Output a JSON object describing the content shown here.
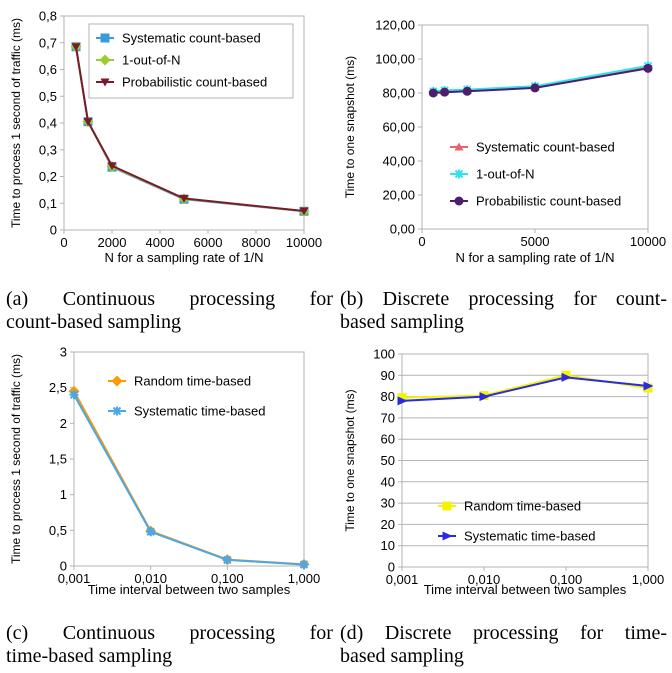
{
  "chart_data": [
    {
      "id": "a",
      "type": "line",
      "xlabel": "N for a sampling rate of 1/N",
      "ylabel": "Time to process 1 second of traffic (ms)",
      "xlim": [
        0,
        10000
      ],
      "ylim": [
        0,
        0.8
      ],
      "xscale": "linear",
      "xticks": [
        0,
        2000,
        4000,
        6000,
        8000,
        10000
      ],
      "xtick_labels": [
        "0",
        "2000",
        "4000",
        "6000",
        "8000",
        "10000"
      ],
      "yticks": [
        0,
        0.1,
        0.2,
        0.3,
        0.4,
        0.5,
        0.6,
        0.7,
        0.8
      ],
      "ytick_labels": [
        "0",
        "0,1",
        "0,2",
        "0,3",
        "0,4",
        "0,5",
        "0,6",
        "0,7",
        "0,8"
      ],
      "grid": false,
      "legend_position": "top-right",
      "series": [
        {
          "name": "Systematic count-based",
          "color": "#3a9ad9",
          "marker": "square",
          "x": [
            500,
            1000,
            2000,
            5000,
            10000
          ],
          "y": [
            0.685,
            0.405,
            0.235,
            0.115,
            0.07
          ]
        },
        {
          "name": "1-out-of-N",
          "color": "#9acd32",
          "marker": "diamond",
          "x": [
            500,
            1000,
            2000,
            5000,
            10000
          ],
          "y": [
            0.685,
            0.405,
            0.237,
            0.117,
            0.07
          ]
        },
        {
          "name": "Probabilistic count-based",
          "color": "#7a1a2e",
          "marker": "triangle-down",
          "x": [
            500,
            1000,
            2000,
            5000,
            10000
          ],
          "y": [
            0.685,
            0.405,
            0.24,
            0.118,
            0.071
          ]
        }
      ]
    },
    {
      "id": "b",
      "type": "line",
      "xlabel": "N for a sampling rate of 1/N",
      "ylabel": "Time to one snapshot (ms)",
      "xlim": [
        0,
        10000
      ],
      "ylim": [
        0,
        120
      ],
      "xscale": "linear",
      "xticks": [
        0,
        5000,
        10000
      ],
      "xtick_labels": [
        "0",
        "5000",
        "10000"
      ],
      "yticks": [
        0,
        20,
        40,
        60,
        80,
        100,
        120
      ],
      "ytick_labels": [
        "0,00",
        "20,00",
        "40,00",
        "60,00",
        "80,00",
        "100,00",
        "120,00"
      ],
      "grid": false,
      "legend_position": "bottom-right",
      "series": [
        {
          "name": "Systematic count-based",
          "color": "#f06070",
          "marker": "triangle-up",
          "x": [
            500,
            1000,
            2000,
            5000,
            10000
          ],
          "y": [
            80.5,
            81,
            81.5,
            83.5,
            95
          ]
        },
        {
          "name": "1-out-of-N",
          "color": "#33e0f0",
          "marker": "star",
          "x": [
            500,
            1000,
            2000,
            5000,
            10000
          ],
          "y": [
            81,
            81.5,
            82,
            84,
            96
          ]
        },
        {
          "name": "Probabilistic count-based",
          "color": "#4b1f6b",
          "marker": "circle",
          "x": [
            500,
            1000,
            2000,
            5000,
            10000
          ],
          "y": [
            80,
            80.5,
            81,
            83,
            94.5
          ]
        }
      ]
    },
    {
      "id": "c",
      "type": "line",
      "xlabel": "Time interval between two samples",
      "ylabel": "Time to process 1 second of traffic (ms)",
      "xscale": "log",
      "xlim": [
        0.001,
        1
      ],
      "ylim": [
        0,
        3
      ],
      "xticks": [
        0.001,
        0.01,
        0.1,
        1
      ],
      "xtick_labels": [
        "0,001",
        "0,010",
        "0,100",
        "1,000"
      ],
      "yticks": [
        0,
        0.5,
        1,
        1.5,
        2,
        2.5,
        3
      ],
      "ytick_labels": [
        "0",
        "0,5",
        "1",
        "1,5",
        "2",
        "2,5",
        "3"
      ],
      "grid": false,
      "legend_position": "top-right",
      "series": [
        {
          "name": "Random time-based",
          "color": "#ff9900",
          "marker": "diamond",
          "x": [
            0.001,
            0.01,
            0.1,
            1
          ],
          "y": [
            2.45,
            0.49,
            0.09,
            0.025
          ]
        },
        {
          "name": "Systematic time-based",
          "color": "#4aa8e8",
          "marker": "star",
          "x": [
            0.001,
            0.01,
            0.1,
            1
          ],
          "y": [
            2.4,
            0.48,
            0.085,
            0.02
          ]
        }
      ]
    },
    {
      "id": "d",
      "type": "line",
      "xlabel": "Time interval between two samples",
      "ylabel": "Time to one snapshot (ms)",
      "xscale": "log",
      "xlim": [
        0.001,
        1
      ],
      "ylim": [
        0,
        100
      ],
      "xticks": [
        0.001,
        0.01,
        0.1,
        1
      ],
      "xtick_labels": [
        "0,001",
        "0,010",
        "0,100",
        "1,000"
      ],
      "yticks": [
        0,
        10,
        20,
        30,
        40,
        50,
        60,
        70,
        80,
        90,
        100
      ],
      "ytick_labels": [
        "0",
        "10",
        "20",
        "30",
        "40",
        "50",
        "60",
        "70",
        "80",
        "90",
        "100"
      ],
      "grid": true,
      "legend_position": "bottom-right",
      "series": [
        {
          "name": "Random time-based",
          "color": "#f4f400",
          "marker": "square",
          "x": [
            0.001,
            0.01,
            0.1,
            1
          ],
          "y": [
            79.5,
            80.5,
            90,
            84
          ]
        },
        {
          "name": "Systematic time-based",
          "color": "#2a2ae0",
          "marker": "triangle-right",
          "x": [
            0.001,
            0.01,
            0.1,
            1
          ],
          "y": [
            78,
            80,
            89,
            85
          ]
        }
      ]
    }
  ],
  "captions": {
    "a": {
      "words": [
        "(a)",
        "Continuous",
        "processing",
        "for"
      ],
      "line2": "count-based sampling"
    },
    "b": {
      "words": [
        "(b)",
        "Discrete",
        "processing",
        "for",
        "count-"
      ],
      "line2": "based sampling"
    },
    "c": {
      "words": [
        "(c)",
        "Continuous",
        "processing",
        "for"
      ],
      "line2": "time-based sampling"
    },
    "d": {
      "words": [
        "(d)",
        "Discrete",
        "processing",
        "for",
        "time-"
      ],
      "line2": "based sampling"
    }
  }
}
